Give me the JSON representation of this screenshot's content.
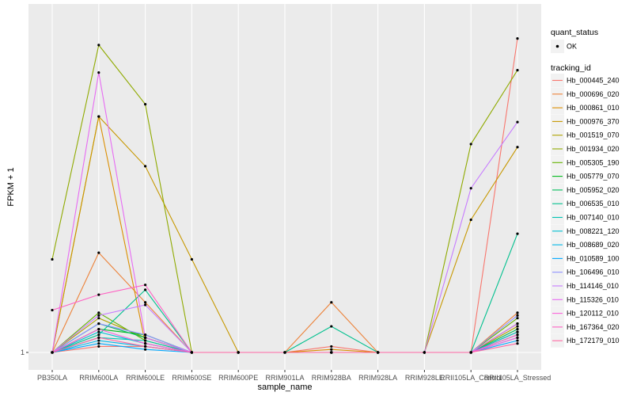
{
  "chart_data": {
    "type": "line",
    "xlabel": "sample_name",
    "ylabel": "FPKM + 1",
    "y_scale": "log",
    "ylim": [
      1,
      3.0
    ],
    "y_ticks": [
      {
        "value": 1,
        "label": "1"
      }
    ],
    "grid": true,
    "legend_position": "right",
    "categories": [
      "PB350LA",
      "RRIM600LA",
      "RRIM600LE",
      "RRIM600SE",
      "RRIM600PE",
      "RRIM901LA",
      "RRIM928BA",
      "RRIM928LA",
      "RRIM928LE",
      "RRII105LA_Control",
      "RRII105LA_Stressed"
    ],
    "quant_status": {
      "title": "quant_status",
      "entries": [
        "OK"
      ]
    },
    "tracking_title": "tracking_id",
    "series": [
      {
        "name": "Hb_000445_240",
        "color": "#F8766D",
        "values": [
          1,
          1.02,
          1.02,
          1.0,
          1,
          1,
          1.02,
          1,
          1,
          1,
          2.82
        ]
      },
      {
        "name": "Hb_000696_020",
        "color": "#EC8239",
        "values": [
          1,
          1.39,
          1.18,
          1.0,
          1,
          1,
          1.18,
          1,
          1,
          1,
          1.14
        ]
      },
      {
        "name": "Hb_000861_010",
        "color": "#DB8E00",
        "values": [
          1,
          2.18,
          1.03,
          1.0,
          1,
          1,
          1.01,
          1,
          1,
          1,
          1.07
        ]
      },
      {
        "name": "Hb_000976_370",
        "color": "#C79800",
        "values": [
          1,
          2.18,
          1.85,
          1.36,
          1,
          1,
          1,
          1,
          1,
          1.55,
          1.97
        ]
      },
      {
        "name": "Hb_001519_070",
        "color": "#AEA200",
        "values": [
          1,
          1.12,
          1.05,
          1.0,
          1,
          1,
          1,
          1,
          1,
          1,
          1.09
        ]
      },
      {
        "name": "Hb_001934_020",
        "color": "#8FAA00",
        "values": [
          1.36,
          2.76,
          2.27,
          1.0,
          1,
          1,
          1,
          1,
          1,
          1.99,
          2.54
        ]
      },
      {
        "name": "Hb_005305_190",
        "color": "#64B200",
        "values": [
          1,
          1.14,
          1.04,
          1.0,
          1,
          1,
          1,
          1,
          1,
          1,
          1.12
        ]
      },
      {
        "name": "Hb_005779_070",
        "color": "#00B81B",
        "values": [
          1,
          1.08,
          1.06,
          1.0,
          1,
          1,
          1,
          1,
          1,
          1,
          1.1
        ]
      },
      {
        "name": "Hb_005952_020",
        "color": "#00BD5C",
        "values": [
          1,
          1.1,
          1.05,
          1.0,
          1,
          1,
          1,
          1,
          1,
          1,
          1.08
        ]
      },
      {
        "name": "Hb_006535_010",
        "color": "#00C08E",
        "values": [
          1,
          1.06,
          1.23,
          1.0,
          1,
          1,
          1.09,
          1,
          1,
          1,
          1.48
        ]
      },
      {
        "name": "Hb_007140_010",
        "color": "#00C1B2",
        "values": [
          1,
          1.05,
          1.04,
          1.0,
          1,
          1,
          1,
          1,
          1,
          1,
          1.06
        ]
      },
      {
        "name": "Hb_008221_120",
        "color": "#00BFD2",
        "values": [
          1,
          1.07,
          1.03,
          1.0,
          1,
          1,
          1,
          1,
          1,
          1,
          1.07
        ]
      },
      {
        "name": "Hb_008689_020",
        "color": "#00B8E7",
        "values": [
          1,
          1.04,
          1.02,
          1.0,
          1,
          1,
          1,
          1,
          1,
          1,
          1.05
        ]
      },
      {
        "name": "Hb_010589_100",
        "color": "#00A9FF",
        "values": [
          1,
          1.03,
          1.01,
          1.0,
          1,
          1,
          1,
          1,
          1,
          1,
          1.04
        ]
      },
      {
        "name": "Hb_106496_010",
        "color": "#8F91FF",
        "values": [
          1,
          1.1,
          1.06,
          1.0,
          1,
          1,
          1,
          1,
          1,
          1,
          1.13
        ]
      },
      {
        "name": "Hb_114146_010",
        "color": "#C77CFF",
        "values": [
          1,
          1.13,
          1.17,
          1.0,
          1,
          1,
          1,
          1,
          1,
          1.72,
          2.14
        ]
      },
      {
        "name": "Hb_115326_010",
        "color": "#E76BF3",
        "values": [
          1,
          2.52,
          1.05,
          1.0,
          1,
          1,
          1,
          1,
          1,
          1,
          1.1
        ]
      },
      {
        "name": "Hb_120112_010",
        "color": "#FA62DB",
        "values": [
          1,
          1.08,
          1.03,
          1.0,
          1,
          1,
          1,
          1,
          1,
          1,
          1.05
        ]
      },
      {
        "name": "Hb_167364_020",
        "color": "#FF61C3",
        "values": [
          1.15,
          1.21,
          1.25,
          1.0,
          1,
          1,
          1,
          1,
          1,
          1,
          1.06
        ]
      },
      {
        "name": "Hb_172179_010",
        "color": "#FF67A4",
        "values": [
          1,
          1.05,
          1.02,
          1.0,
          1,
          1,
          1,
          1,
          1,
          1,
          1.03
        ]
      }
    ]
  }
}
